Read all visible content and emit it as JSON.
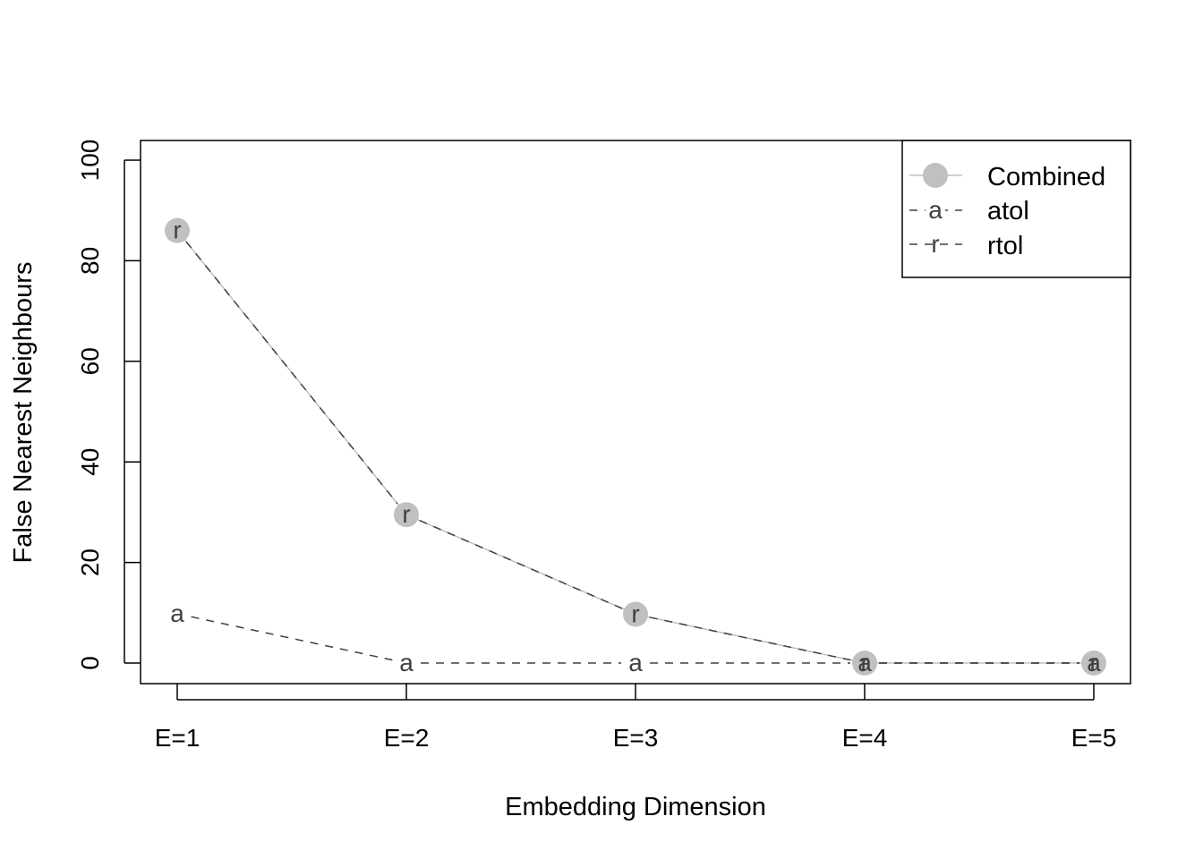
{
  "chart_data": {
    "type": "line",
    "categories": [
      "E=1",
      "E=2",
      "E=3",
      "E=4",
      "E=5"
    ],
    "xlabel": "Embedding Dimension",
    "ylabel": "False Nearest Neighbours",
    "ylim": [
      0,
      100
    ],
    "yticks": [
      "0",
      "20",
      "40",
      "60",
      "80",
      "100"
    ],
    "grid": false,
    "legend_position": "top-right",
    "series": [
      {
        "name": "Combined",
        "values": [
          86,
          29.5,
          9.7,
          0,
          0
        ],
        "color": "#c0c0c0",
        "marker": "filled-circle",
        "line": "solid"
      },
      {
        "name": "atol",
        "values": [
          9.8,
          0,
          0,
          0,
          0
        ],
        "color": "#404040",
        "marker": "a",
        "line": "dashed"
      },
      {
        "name": "rtol",
        "values": [
          86,
          29.5,
          9.7,
          0,
          0
        ],
        "color": "#404040",
        "marker": "r",
        "line": "dashed"
      }
    ]
  }
}
